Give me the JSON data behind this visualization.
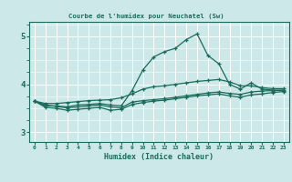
{
  "title": "Courbe de l'humidex pour Neuchatel (Sw)",
  "xlabel": "Humidex (Indice chaleur)",
  "bg_color": "#cce8e8",
  "grid_color": "#ffffff",
  "line_color": "#1a6b5a",
  "x_ticks": [
    0,
    1,
    2,
    3,
    4,
    5,
    6,
    7,
    8,
    9,
    10,
    11,
    12,
    13,
    14,
    15,
    16,
    17,
    18,
    19,
    20,
    21,
    22,
    23
  ],
  "ylim": [
    2.8,
    5.3
  ],
  "yticks": [
    3,
    4,
    5
  ],
  "series": {
    "main": [
      3.65,
      3.55,
      3.55,
      3.53,
      3.57,
      3.58,
      3.6,
      3.57,
      3.55,
      3.87,
      4.3,
      4.57,
      4.68,
      4.75,
      4.93,
      5.05,
      4.6,
      4.43,
      4.0,
      3.9,
      4.03,
      3.9,
      3.88,
      3.88
    ],
    "upper": [
      3.65,
      3.6,
      3.6,
      3.62,
      3.64,
      3.66,
      3.67,
      3.68,
      3.72,
      3.8,
      3.9,
      3.95,
      3.97,
      4.0,
      4.03,
      4.06,
      4.08,
      4.1,
      4.05,
      3.97,
      3.97,
      3.93,
      3.91,
      3.91
    ],
    "lower": [
      3.65,
      3.52,
      3.5,
      3.46,
      3.48,
      3.5,
      3.52,
      3.46,
      3.48,
      3.58,
      3.62,
      3.65,
      3.67,
      3.7,
      3.73,
      3.76,
      3.78,
      3.8,
      3.76,
      3.73,
      3.78,
      3.8,
      3.83,
      3.85
    ],
    "trend": [
      3.65,
      3.57,
      3.54,
      3.51,
      3.53,
      3.55,
      3.57,
      3.53,
      3.51,
      3.63,
      3.66,
      3.68,
      3.7,
      3.73,
      3.76,
      3.79,
      3.82,
      3.84,
      3.81,
      3.79,
      3.84,
      3.86,
      3.87,
      3.87
    ]
  }
}
